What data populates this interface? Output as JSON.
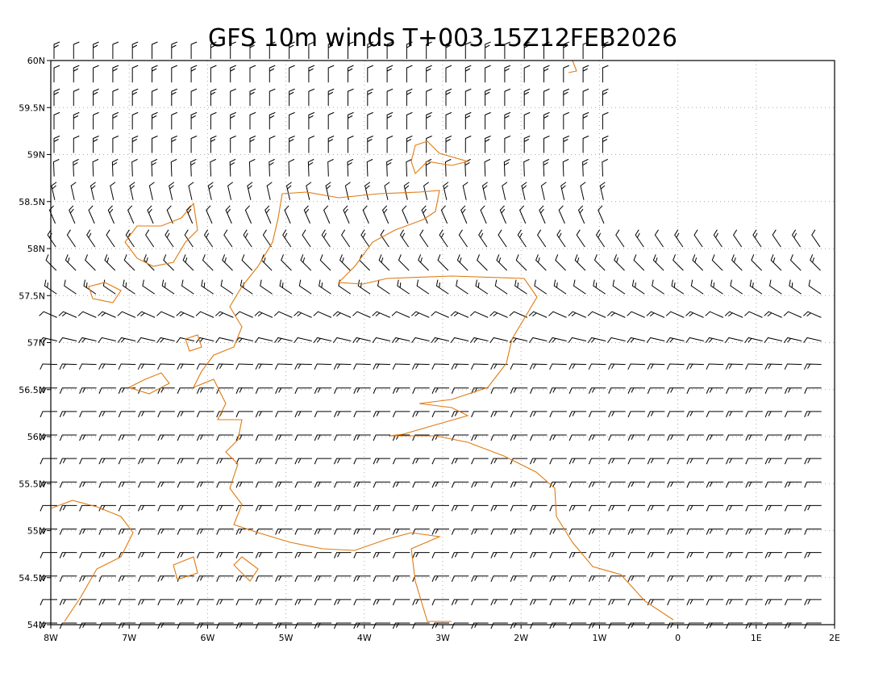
{
  "map": {
    "title": "GFS 10m winds T+003 15Z12FEB2026",
    "lon_range": [
      -8,
      2
    ],
    "lat_range": [
      54,
      60
    ],
    "lon_ticks": [
      {
        "value": -8,
        "label": "8W"
      },
      {
        "value": -7,
        "label": "7W"
      },
      {
        "value": -6,
        "label": "6W"
      },
      {
        "value": -5,
        "label": "5W"
      },
      {
        "value": -4,
        "label": "4W"
      },
      {
        "value": -3,
        "label": "3W"
      },
      {
        "value": -2,
        "label": "2W"
      },
      {
        "value": -1,
        "label": "1W"
      },
      {
        "value": 0,
        "label": "0"
      },
      {
        "value": 1,
        "label": "1E"
      },
      {
        "value": 2,
        "label": "2E"
      }
    ],
    "lat_ticks": [
      {
        "value": 54,
        "label": "54N"
      },
      {
        "value": 54.5,
        "label": "54.5N"
      },
      {
        "value": 55,
        "label": "55N"
      },
      {
        "value": 55.5,
        "label": "55.5N"
      },
      {
        "value": 56,
        "label": "56N"
      },
      {
        "value": 56.5,
        "label": "56.5N"
      },
      {
        "value": 57,
        "label": "57N"
      },
      {
        "value": 57.5,
        "label": "57.5N"
      },
      {
        "value": 58,
        "label": "58N"
      },
      {
        "value": 58.5,
        "label": "58.5N"
      },
      {
        "value": 59,
        "label": "59N"
      },
      {
        "value": 59.5,
        "label": "59.5N"
      },
      {
        "value": 60,
        "label": "60N"
      }
    ]
  }
}
